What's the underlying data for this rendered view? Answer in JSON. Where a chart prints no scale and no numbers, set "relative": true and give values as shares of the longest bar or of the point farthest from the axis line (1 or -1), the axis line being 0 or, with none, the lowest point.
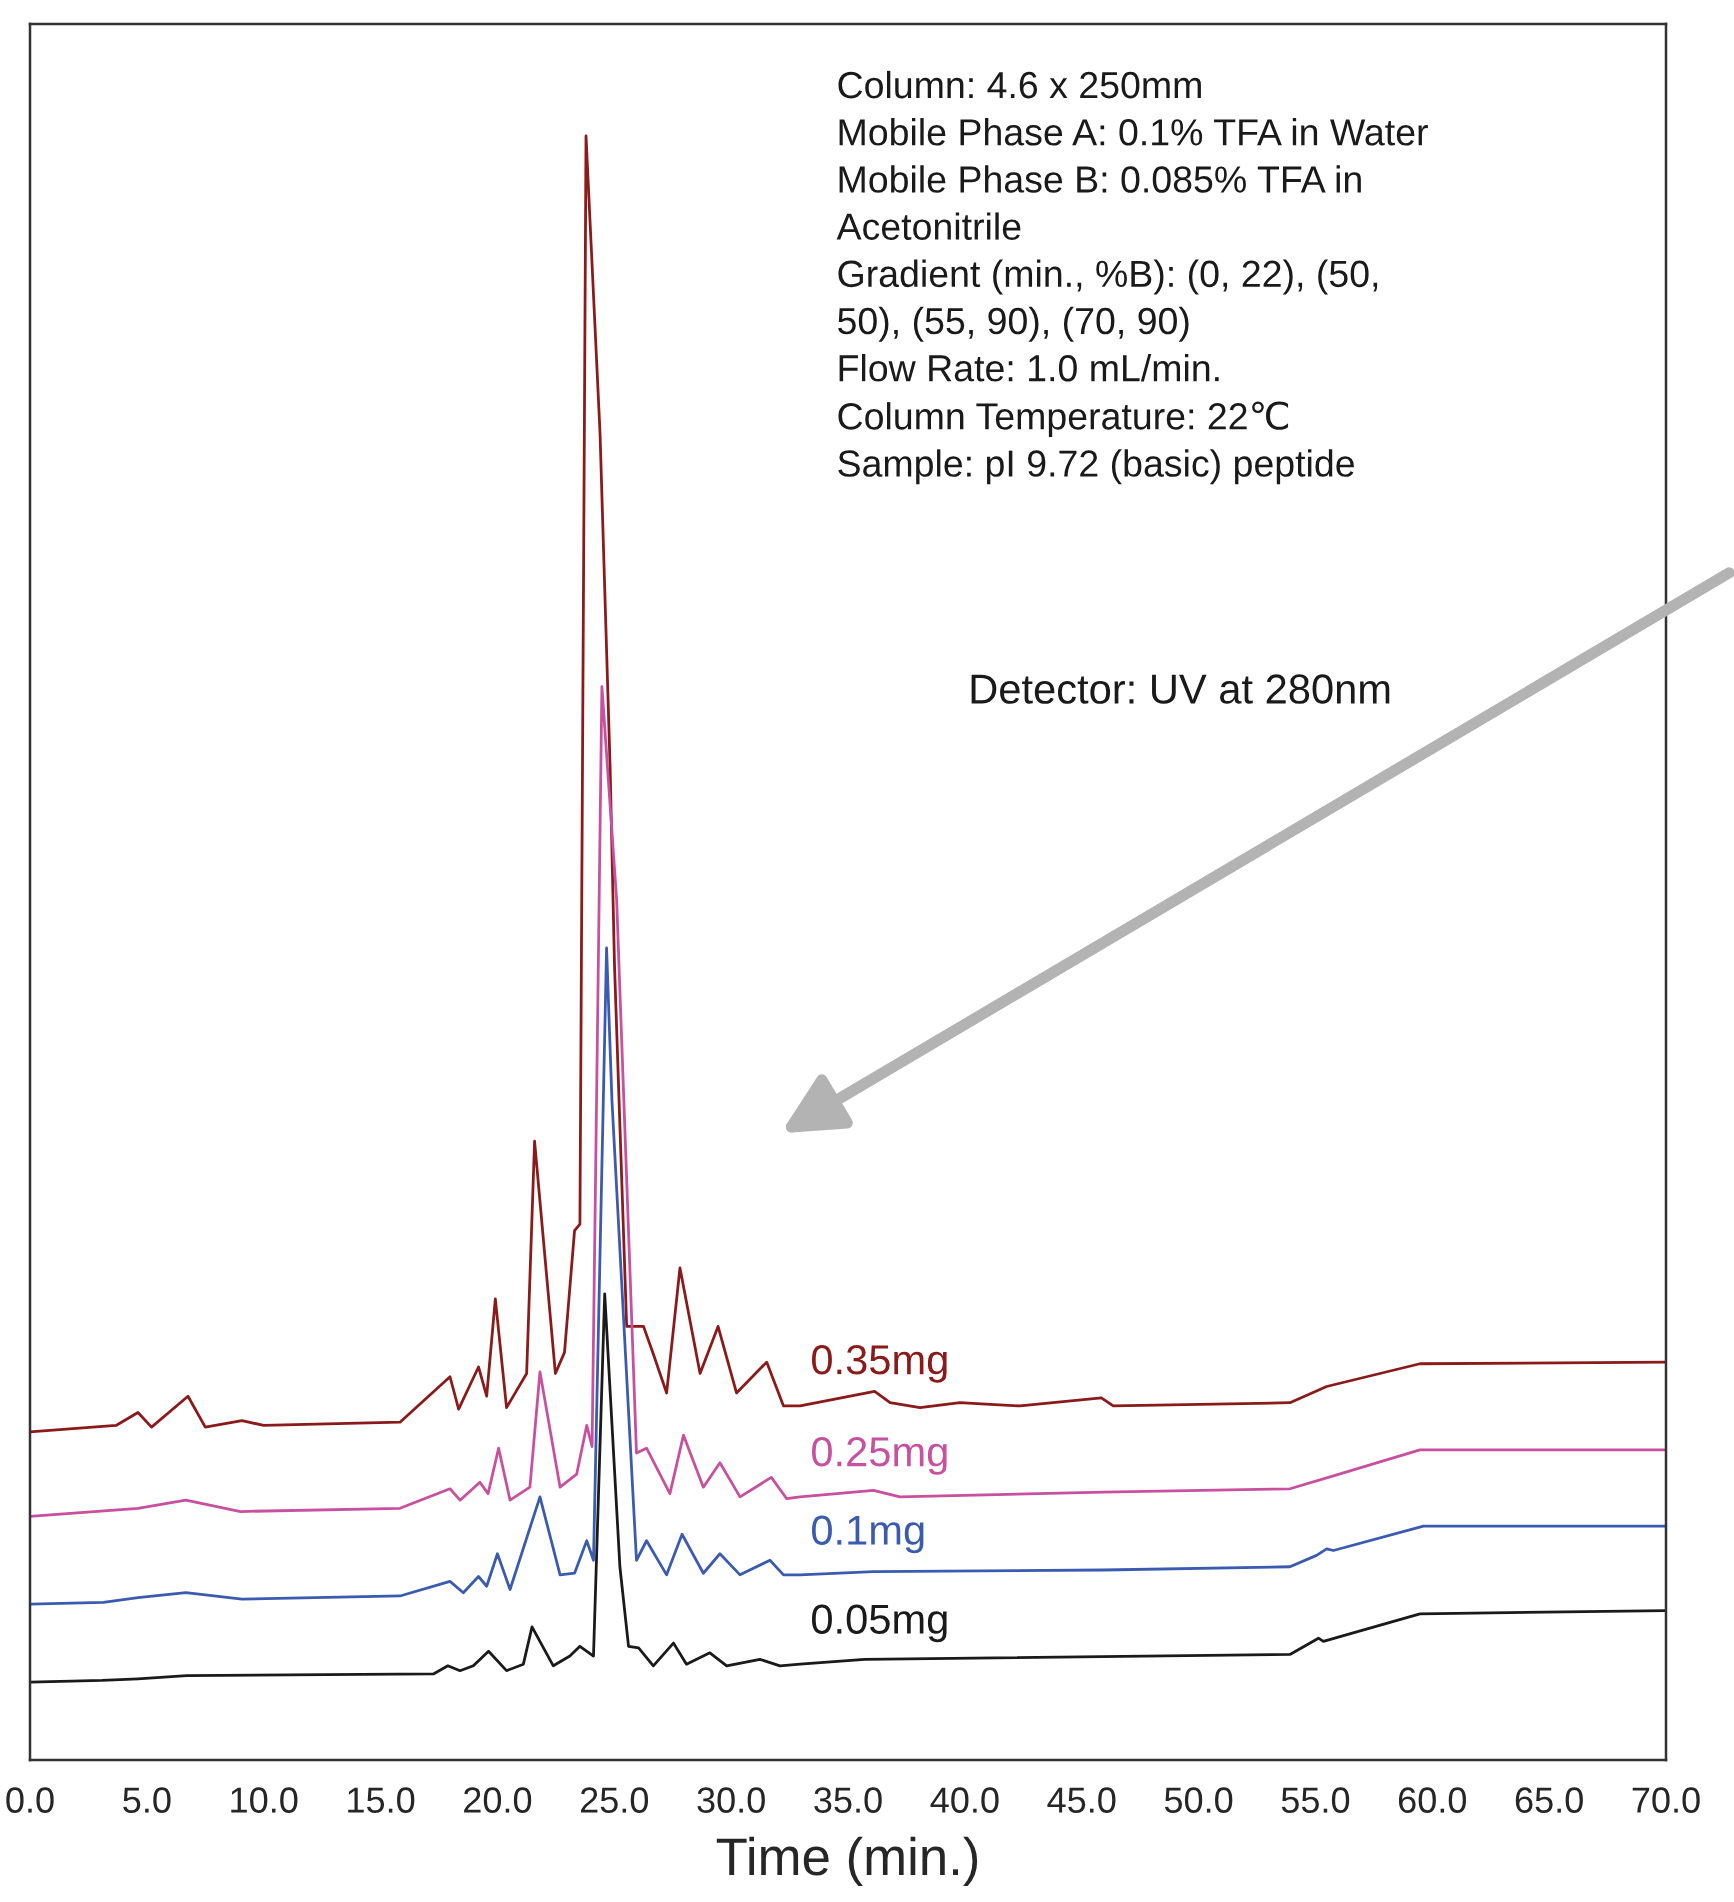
{
  "chart_data": {
    "type": "line",
    "relative": true,
    "xlabel": "Time (min.)",
    "xlim": [
      0,
      70
    ],
    "xticks": [
      {
        "value": 0,
        "label": "0.0"
      },
      {
        "value": 5,
        "label": "5.0"
      },
      {
        "value": 10,
        "label": "10.0"
      },
      {
        "value": 15,
        "label": "15.0"
      },
      {
        "value": 20,
        "label": "20.0"
      },
      {
        "value": 25,
        "label": "25.0"
      },
      {
        "value": 30,
        "label": "30.0"
      },
      {
        "value": 35,
        "label": "35.0"
      },
      {
        "value": 40,
        "label": "40.0"
      },
      {
        "value": 45,
        "label": "45.0"
      },
      {
        "value": 50,
        "label": "50.0"
      },
      {
        "value": 55,
        "label": "55.0"
      },
      {
        "value": 60,
        "label": "60.0"
      },
      {
        "value": 65,
        "label": "65.0"
      },
      {
        "value": 70,
        "label": "70.0"
      }
    ],
    "tick_labels": "x",
    "grid": false,
    "legend": false,
    "marker": "none",
    "line_style": "solid",
    "annotations": [
      "Column: 4.6 x 250mm\nMobile Phase A: 0.1% TFA in Water\nMobile Phase B: 0.085% TFA in\nAcetonitrile\nGradient (min., %B): (0, 22), (50,\n50), (55, 90), (70, 90)\nFlow Rate: 1.0 mL/min.\nColumn Temperature: 22℃\nSample: pI 9.72 (basic) peptide",
      "Detector: UV at 280nm"
    ],
    "series": [
      {
        "name": "0.35mg",
        "color": "#8b1a1a",
        "x": [
          0,
          3.68,
          4.62,
          5.2,
          6.76,
          7.5,
          9.07,
          10,
          15.83,
          17.97,
          18.34,
          19.19,
          19.54,
          19.91,
          20.39,
          21.25,
          21.59,
          22.48,
          22.87,
          23.3,
          23.53,
          23.79,
          24.39,
          24.82,
          25.01,
          25.53,
          26.25,
          26.67,
          27.24,
          27.81,
          28.67,
          29.44,
          30.23,
          31.52,
          32.24,
          32.95,
          36.14,
          36.8,
          38.08,
          39.79,
          41.08,
          42.36,
          45.84,
          46.35,
          53.91,
          55.48,
          57.19,
          59.47,
          70
        ],
        "values": [
          0.202,
          0.206,
          0.214,
          0.205,
          0.224,
          0.205,
          0.209,
          0.206,
          0.208,
          0.236,
          0.216,
          0.242,
          0.224,
          0.284,
          0.217,
          0.238,
          0.381,
          0.238,
          0.251,
          0.326,
          0.33,
          1.0,
          0.817,
          0.612,
          0.489,
          0.267,
          0.267,
          0.25,
          0.226,
          0.303,
          0.238,
          0.267,
          0.226,
          0.245,
          0.218,
          0.218,
          0.227,
          0.22,
          0.217,
          0.22,
          0.219,
          0.218,
          0.223,
          0.218,
          0.22,
          0.23,
          0.236,
          0.244,
          0.245
        ]
      },
      {
        "name": "0.25mg",
        "color": "#c8509e",
        "x": [
          0,
          4.62,
          6.67,
          9.01,
          15.83,
          17.97,
          18.4,
          19.25,
          19.6,
          20.05,
          20.54,
          21.39,
          21.82,
          22.68,
          23.39,
          23.82,
          24.05,
          24.47,
          25.1,
          25.95,
          26.38,
          27.38,
          27.96,
          28.81,
          29.52,
          30.38,
          31.72,
          32.37,
          32.95,
          36.09,
          37.22,
          45.93,
          53.91,
          55.77,
          59.47,
          70
        ],
        "values": [
          0.15,
          0.155,
          0.16,
          0.153,
          0.155,
          0.167,
          0.16,
          0.171,
          0.164,
          0.192,
          0.16,
          0.168,
          0.239,
          0.168,
          0.176,
          0.206,
          0.193,
          0.661,
          0.53,
          0.189,
          0.192,
          0.164,
          0.2,
          0.168,
          0.183,
          0.162,
          0.174,
          0.161,
          0.162,
          0.166,
          0.162,
          0.165,
          0.167,
          0.175,
          0.191,
          0.191
        ]
      },
      {
        "name": "0.1mg",
        "color": "#3a5bb0",
        "x": [
          0,
          3.14,
          4.62,
          6.67,
          9.07,
          15.83,
          17.97,
          18.54,
          19.19,
          19.54,
          20.0,
          20.54,
          21.82,
          22.68,
          23.3,
          23.82,
          24.11,
          24.67,
          24.9,
          25.95,
          26.38,
          27.24,
          27.9,
          28.81,
          29.52,
          30.38,
          31.66,
          32.24,
          32.95,
          36.09,
          45.93,
          53.91,
          55.05,
          55.48,
          55.77,
          59.62,
          70
        ],
        "values": [
          0.096,
          0.097,
          0.1,
          0.103,
          0.099,
          0.101,
          0.11,
          0.103,
          0.113,
          0.107,
          0.127,
          0.105,
          0.162,
          0.114,
          0.115,
          0.135,
          0.123,
          0.5,
          0.406,
          0.123,
          0.135,
          0.114,
          0.139,
          0.115,
          0.127,
          0.114,
          0.123,
          0.114,
          0.114,
          0.116,
          0.117,
          0.119,
          0.126,
          0.13,
          0.129,
          0.144,
          0.144
        ]
      },
      {
        "name": "0.05mg",
        "color": "#1a1a1a",
        "x": [
          0,
          3.08,
          4.62,
          6.7,
          17.26,
          17.88,
          18.4,
          18.97,
          19.62,
          20.39,
          21.11,
          21.48,
          22.39,
          23.1,
          23.53,
          24.11,
          24.59,
          25.24,
          25.61,
          26.04,
          26.67,
          27.53,
          28.09,
          29.09,
          29.81,
          31.23,
          32.09,
          32.95,
          35.71,
          53.91,
          55.13,
          55.34,
          59.47,
          70
        ],
        "values": [
          0.048,
          0.049,
          0.05,
          0.052,
          0.053,
          0.058,
          0.055,
          0.058,
          0.067,
          0.055,
          0.059,
          0.082,
          0.058,
          0.064,
          0.07,
          0.064,
          0.287,
          0.119,
          0.07,
          0.069,
          0.058,
          0.072,
          0.059,
          0.066,
          0.058,
          0.062,
          0.058,
          0.059,
          0.062,
          0.065,
          0.075,
          0.073,
          0.09,
          0.092
        ]
      }
    ]
  }
}
